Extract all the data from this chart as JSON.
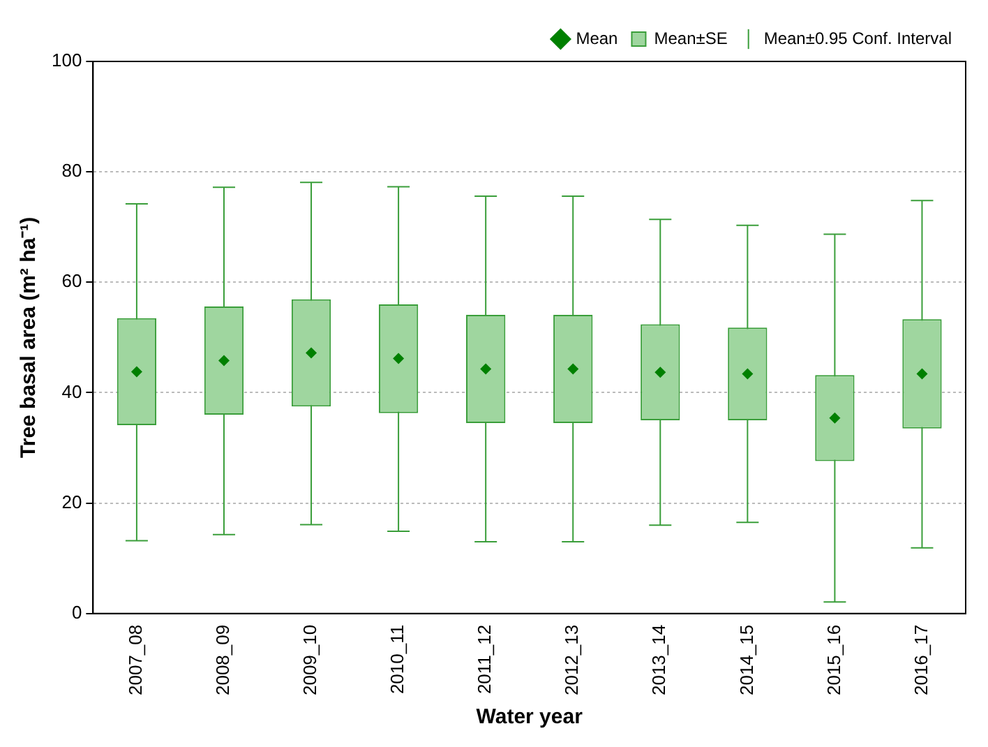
{
  "chart_data": {
    "type": "bar",
    "xlabel": "Water year",
    "ylabel": "Tree basal area (m² ha⁻¹)",
    "categories": [
      "2007_08",
      "2008_09",
      "2009_10",
      "2010_11",
      "2011_12",
      "2012_13",
      "2013_14",
      "2014_15",
      "2015_16",
      "2016_17"
    ],
    "series": [
      {
        "name": "Mean±SE",
        "color": "#9fd69f",
        "base": [
          34.1,
          36,
          37.5,
          36.3,
          34.5,
          34.5,
          35,
          35,
          27.6,
          33.5
        ],
        "values": [
          19.4,
          19.6,
          19.4,
          19.7,
          19.6,
          19.6,
          17.4,
          16.8,
          15.6,
          19.8
        ]
      },
      {
        "name": "Mean",
        "type": "scatter",
        "color": "#008000",
        "marker": "diamond",
        "values": [
          43.8,
          45.8,
          47.2,
          46.2,
          44.3,
          44.3,
          43.7,
          43.4,
          35.4,
          43.4
        ],
        "errors": [
          [
            13.2,
            74.2
          ],
          [
            14.3,
            77.2
          ],
          [
            16.1,
            78.1
          ],
          [
            14.9,
            77.3
          ],
          [
            13,
            75.6
          ],
          [
            13,
            75.6
          ],
          [
            16,
            71.4
          ],
          [
            16.5,
            70.3
          ],
          [
            2.1,
            68.7
          ],
          [
            11.9,
            74.8
          ]
        ]
      }
    ],
    "annotations": [
      "Mean±0.95 Conf. Interval"
    ],
    "ylim": [
      0,
      100
    ],
    "yticks": [
      0,
      20,
      40,
      60,
      80,
      100
    ],
    "grid": "y",
    "legend": "top right"
  }
}
